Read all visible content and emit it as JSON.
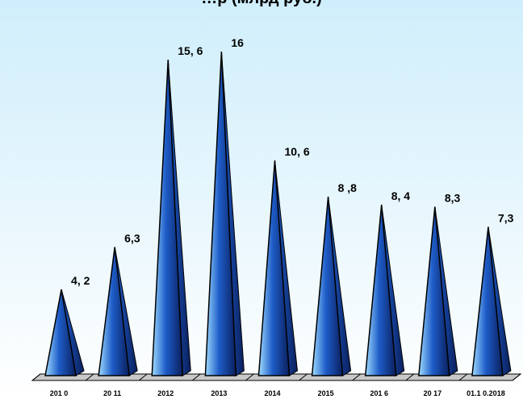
{
  "chart_data": {
    "type": "bar",
    "title": "…р (млрд руб.)",
    "categories": [
      "201 0",
      "20 11",
      "2012",
      "2013",
      "2014",
      "2015",
      "201 6",
      "20 17",
      "01.1 0.2018"
    ],
    "values": [
      4.2,
      6.3,
      15.6,
      16,
      10.6,
      8.8,
      8.4,
      8.3,
      7.3
    ],
    "value_labels": [
      "4, 2",
      "6,3",
      "15, 6",
      "16",
      "10, 6",
      "8 ,8",
      "8, 4",
      "8,3",
      "7,3"
    ],
    "ylim": [
      0,
      16.8
    ],
    "xlabel": "",
    "ylabel": "",
    "grid": false,
    "legend": "none",
    "colors": {
      "background_top": "#cfeefb",
      "background_bottom": "#ffffff",
      "cone_dark": "#0a1f5c",
      "cone_mid": "#1e5cc8",
      "cone_light": "#9fdcff",
      "cone_edge": "#000000",
      "floor": "#c8c8c8",
      "floor_edge": "#000000"
    }
  }
}
